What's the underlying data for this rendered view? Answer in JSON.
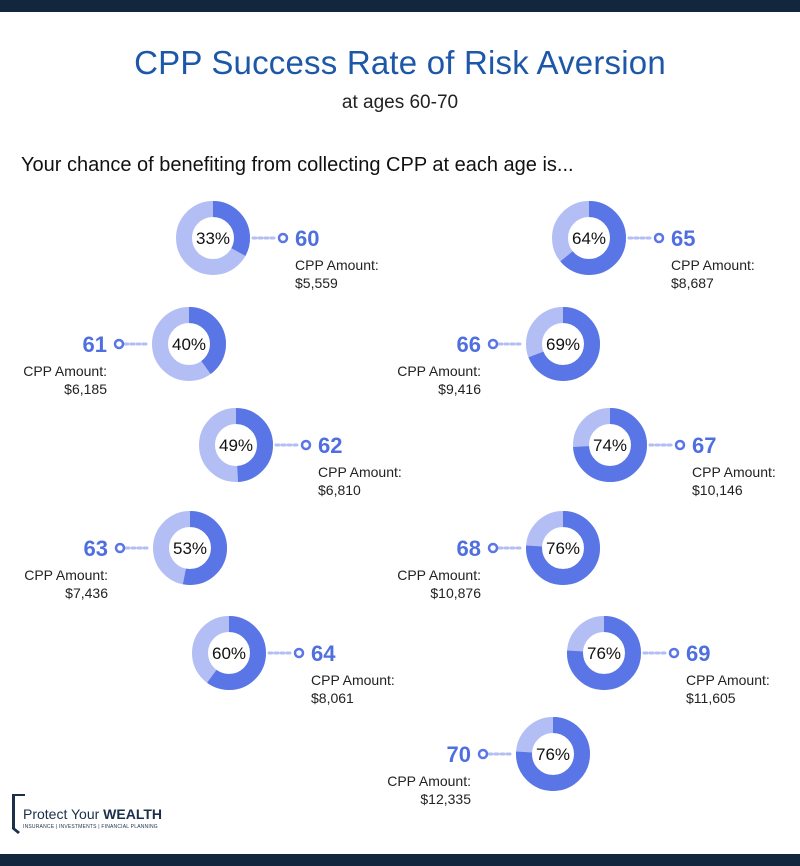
{
  "header": {
    "title": "CPP Success Rate of Risk Aversion",
    "subtitle": "at ages 60-70"
  },
  "intro": "Your chance of benefiting from collecting CPP at each age is...",
  "colors": {
    "ring_track": "#b3bff4",
    "ring_fill": "#5a76e6",
    "age_label": "#4f6fe0",
    "title": "#1d57a8",
    "band": "#12263d"
  },
  "chart_data": {
    "type": "donut-grid",
    "title": "CPP Success Rate of Risk Aversion",
    "subtitle": "at ages 60-70",
    "amount_caption": "CPP Amount:",
    "items": [
      {
        "age": "60",
        "percent": 33,
        "percent_label": "33%",
        "amount": "$5,559"
      },
      {
        "age": "61",
        "percent": 40,
        "percent_label": "40%",
        "amount": "$6,185"
      },
      {
        "age": "62",
        "percent": 49,
        "percent_label": "49%",
        "amount": "$6,810"
      },
      {
        "age": "63",
        "percent": 53,
        "percent_label": "53%",
        "amount": "$7,436"
      },
      {
        "age": "64",
        "percent": 60,
        "percent_label": "60%",
        "amount": "$8,061"
      },
      {
        "age": "65",
        "percent": 64,
        "percent_label": "64%",
        "amount": "$8,687"
      },
      {
        "age": "66",
        "percent": 69,
        "percent_label": "69%",
        "amount": "$9,416"
      },
      {
        "age": "67",
        "percent": 74,
        "percent_label": "74%",
        "amount": "$10,146"
      },
      {
        "age": "68",
        "percent": 76,
        "percent_label": "76%",
        "amount": "$10,876"
      },
      {
        "age": "69",
        "percent": 76,
        "percent_label": "76%",
        "amount": "$11,605"
      },
      {
        "age": "70",
        "percent": 76,
        "percent_label": "76%",
        "amount": "$12,335"
      }
    ]
  },
  "logo": {
    "name_prefix": "Protect Your ",
    "name_bold": "WEALTH",
    "tagline": "INSURANCE | INVESTMENTS | FINANCIAL PLANNING"
  }
}
